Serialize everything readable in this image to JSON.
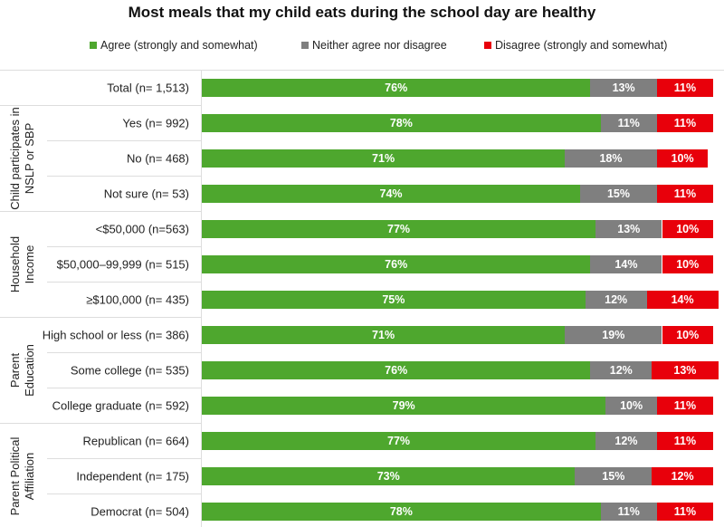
{
  "chart_data": {
    "type": "bar",
    "orientation": "horizontal-stacked",
    "title": "Most meals that my child eats during the school day are healthy",
    "xlim": [
      0,
      100
    ],
    "legend_position": "top",
    "series": [
      {
        "name": "Agree (strongly and somewhat)",
        "color": "#4ea72e"
      },
      {
        "name": "Neither agree nor disagree",
        "color": "#7f7f7f"
      },
      {
        "name": "Disagree (strongly and somewhat)",
        "color": "#e8000b"
      }
    ],
    "groups": [
      {
        "label": [
          "",
          ""
        ],
        "rows": [
          {
            "label": "Total (n= 1,513)",
            "values": [
              76,
              13,
              11
            ]
          }
        ]
      },
      {
        "label": [
          "Child participates in",
          "NSLP or SBP"
        ],
        "rows": [
          {
            "label": "Yes (n= 992)",
            "values": [
              78,
              11,
              11
            ]
          },
          {
            "label": "No (n= 468)",
            "values": [
              71,
              18,
              10
            ]
          },
          {
            "label": "Not sure (n= 53)",
            "values": [
              74,
              15,
              11
            ]
          }
        ]
      },
      {
        "label": [
          "Household",
          "Income"
        ],
        "rows": [
          {
            "label": "<$50,000 (n=563)",
            "values": [
              77,
              13,
              10
            ]
          },
          {
            "label": "$50,000–99,999 (n= 515)",
            "values": [
              76,
              14,
              10
            ]
          },
          {
            "label": "≥$100,000 (n= 435)",
            "values": [
              75,
              12,
              14
            ]
          }
        ]
      },
      {
        "label": [
          "Parent",
          "Education"
        ],
        "rows": [
          {
            "label": "High school or less (n= 386)",
            "values": [
              71,
              19,
              10
            ]
          },
          {
            "label": "Some college (n= 535)",
            "values": [
              76,
              12,
              13
            ]
          },
          {
            "label": "College graduate (n= 592)",
            "values": [
              79,
              10,
              11
            ]
          }
        ]
      },
      {
        "label": [
          "Parent Political",
          "Affiliation"
        ],
        "rows": [
          {
            "label": "Republican (n= 664)",
            "values": [
              77,
              12,
              11
            ]
          },
          {
            "label": "Independent (n= 175)",
            "values": [
              73,
              15,
              12
            ]
          },
          {
            "label": "Democrat (n= 504)",
            "values": [
              78,
              11,
              11
            ]
          }
        ]
      }
    ]
  }
}
